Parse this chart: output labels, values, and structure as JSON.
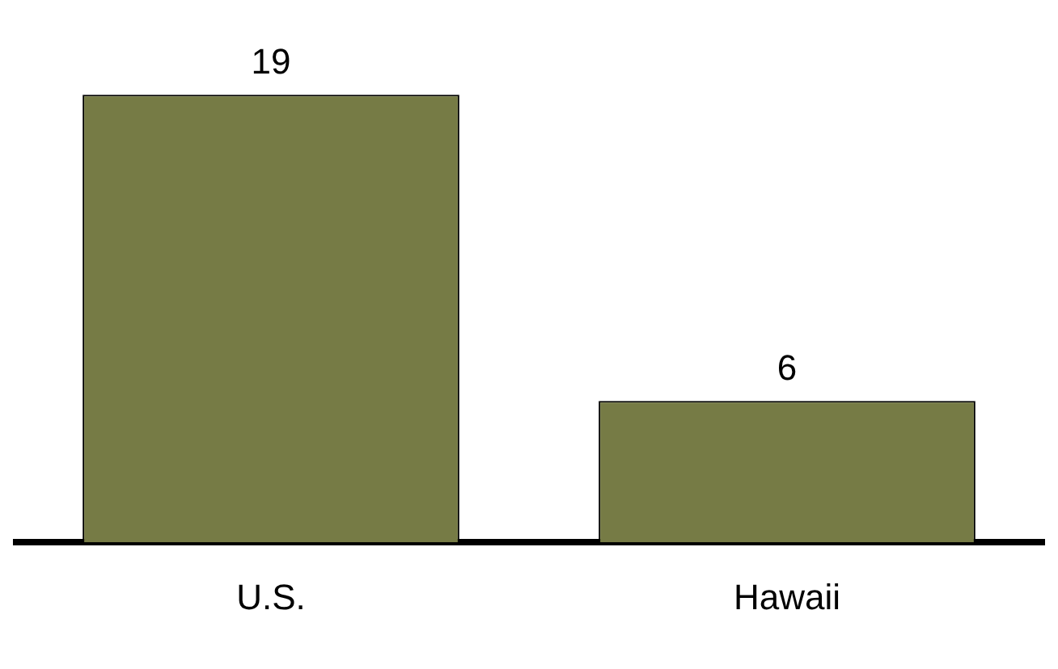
{
  "chart_data": {
    "type": "bar",
    "categories": [
      "U.S.",
      "Hawaii"
    ],
    "values": [
      19,
      6
    ],
    "color": "#767b45",
    "data_labels": true,
    "grid": false,
    "legend": false
  }
}
